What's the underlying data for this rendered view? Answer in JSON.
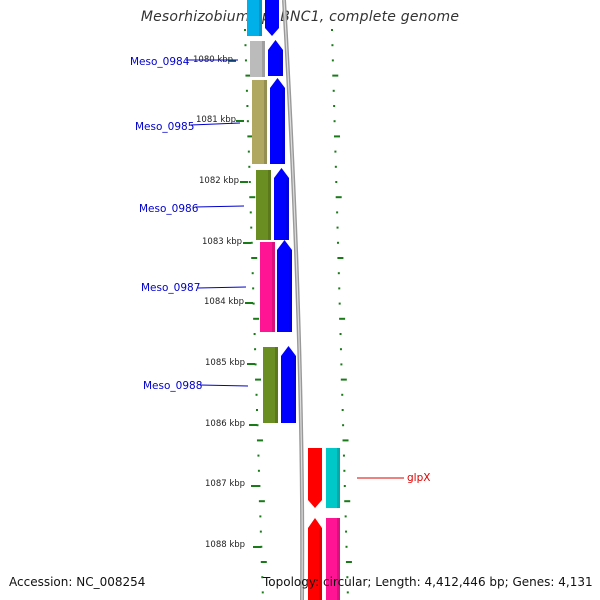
{
  "title": "Mesorhizobium sp. BNC1, complete genome",
  "footer": {
    "accession": "Accession: NC_008254",
    "summary": "Topology: circular; Length: 4,412,446 bp; Genes: 4,131"
  },
  "ruler": {
    "ticks": [
      "1080 kbp",
      "1081 kbp",
      "1082 kbp",
      "1083 kbp",
      "1084 kbp",
      "1085 kbp",
      "1086 kbp",
      "1087 kbp",
      "1088 kbp"
    ]
  },
  "colors": {
    "background": "#ffffff",
    "backbone": "#999999",
    "tick": "#1a7a1a",
    "gene_label": "#0000cc",
    "glpX_label": "#dd0000",
    "cds": "#0000ff",
    "cds_light": "#5050ff"
  },
  "genes": [
    {
      "name": "Meso_0984",
      "cog_color": "#bbbbbb",
      "cds_color": "#0000ff"
    },
    {
      "name": "Meso_0985",
      "cog_color": "#b0a860",
      "cds_color": "#0000ff"
    },
    {
      "name": "Meso_0986",
      "cog_color": "#6b8e23",
      "cds_color": "#0000ff"
    },
    {
      "name": "Meso_0987",
      "cog_color": "#ff1493",
      "cds_color": "#0000ff"
    },
    {
      "name": "Meso_0988",
      "cog_color": "#6b8e23",
      "cds_color": "#0000ff"
    },
    {
      "name": "glpX",
      "cog_color": "#00c8c8",
      "cds_color": "#ff0000"
    }
  ],
  "partial_features": {
    "top_left_cog_color": "#00b0e8",
    "top_right_cds_color": "#0000ff",
    "bottom_cds_color": "#ff0000",
    "bottom_cog_color": "#ff1493"
  }
}
